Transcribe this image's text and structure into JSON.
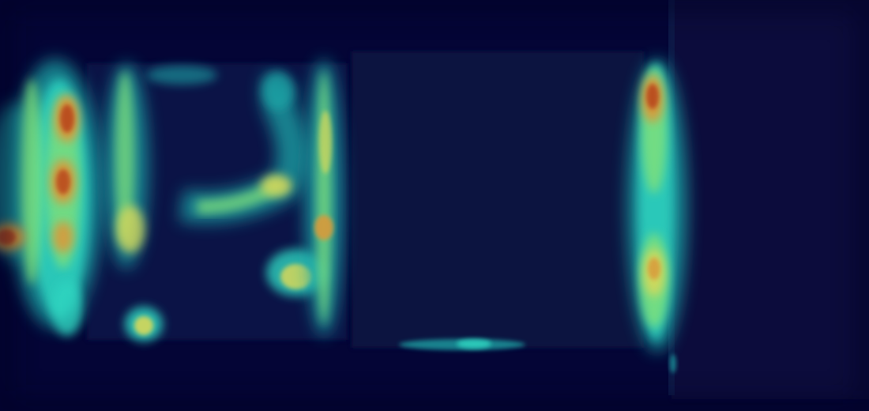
{
  "image": {
    "kind": "heatmap-overlay-photo",
    "colormap": "jet",
    "background_color": "#040536",
    "palette": {
      "deep": "#040536",
      "navy": "#0a1445",
      "block": "#0d1a48",
      "teal": "#1fa7a8",
      "cyan": "#2fd4c0",
      "green": "#7fe07a",
      "yellow": "#d7d85a",
      "orange": "#d99a3a",
      "red": "#b8461f"
    }
  }
}
